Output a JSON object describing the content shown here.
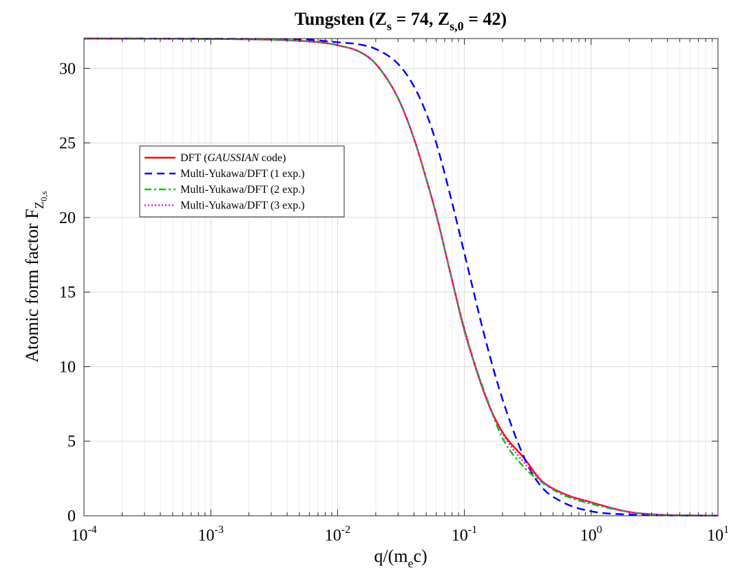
{
  "chart_data": {
    "type": "line",
    "title": {
      "prefix": "Tungsten (Z",
      "sub1": "s",
      "mid": " = 74, Z",
      "sub2": "s,0",
      "suffix": " = 42)"
    },
    "xlabel": {
      "prefix": "q/(m",
      "sub": "e",
      "suffix": "c)"
    },
    "ylabel": {
      "prefix": "Atomic form factor F",
      "sub": "Z",
      "subsub": "0,s"
    },
    "x_scale": "log",
    "xlim": [
      0.0001,
      10
    ],
    "ylim": [
      0,
      32
    ],
    "x_ticks": [
      {
        "base": "10",
        "exp": "-4"
      },
      {
        "base": "10",
        "exp": "-3"
      },
      {
        "base": "10",
        "exp": "-2"
      },
      {
        "base": "10",
        "exp": "-1"
      },
      {
        "base": "10",
        "exp": "0"
      },
      {
        "base": "10",
        "exp": "1"
      }
    ],
    "y_ticks": [
      "0",
      "5",
      "10",
      "15",
      "20",
      "25",
      "30"
    ],
    "grid": true,
    "legend_position": "upper-left",
    "series": [
      {
        "name": "DFT (GAUSSIAN code)",
        "name_parts": [
          "DFT (",
          "GAUSSIAN",
          " code)"
        ],
        "color": "#ff0000",
        "style": "solid",
        "points": [
          [
            0.0001,
            32.0
          ],
          [
            0.002,
            31.95
          ],
          [
            0.005,
            31.85
          ],
          [
            0.008,
            31.7
          ],
          [
            0.01,
            31.55
          ],
          [
            0.015,
            31.1
          ],
          [
            0.02,
            30.3
          ],
          [
            0.03,
            28.0
          ],
          [
            0.04,
            25.3
          ],
          [
            0.05,
            22.6
          ],
          [
            0.06,
            20.2
          ],
          [
            0.08,
            15.8
          ],
          [
            0.1,
            12.5
          ],
          [
            0.15,
            7.8
          ],
          [
            0.2,
            5.6
          ],
          [
            0.3,
            3.8
          ],
          [
            0.4,
            2.4
          ],
          [
            0.6,
            1.5
          ],
          [
            1.0,
            0.9
          ],
          [
            2.0,
            0.25
          ],
          [
            3.0,
            0.1
          ],
          [
            5.0,
            0.03
          ],
          [
            10.0,
            0.01
          ]
        ]
      },
      {
        "name": "Multi-Yukawa/DFT (1 exp.)",
        "color": "#0000ff",
        "style": "dashed",
        "points": [
          [
            0.0001,
            32.0
          ],
          [
            0.005,
            31.95
          ],
          [
            0.01,
            31.75
          ],
          [
            0.015,
            31.6
          ],
          [
            0.02,
            31.3
          ],
          [
            0.03,
            30.3
          ],
          [
            0.04,
            28.8
          ],
          [
            0.05,
            27.0
          ],
          [
            0.06,
            25.0
          ],
          [
            0.08,
            21.0
          ],
          [
            0.1,
            17.6
          ],
          [
            0.15,
            11.5
          ],
          [
            0.2,
            7.8
          ],
          [
            0.3,
            3.8
          ],
          [
            0.4,
            2.0
          ],
          [
            0.6,
            0.9
          ],
          [
            1.0,
            0.3
          ],
          [
            2.0,
            0.08
          ],
          [
            5.0,
            0.02
          ],
          [
            10.0,
            0.01
          ]
        ]
      },
      {
        "name": "Multi-Yukawa/DFT (2 exp.)",
        "color": "#00cc00",
        "style": "dashdot",
        "points": [
          [
            0.0001,
            32.0
          ],
          [
            0.002,
            31.95
          ],
          [
            0.005,
            31.85
          ],
          [
            0.008,
            31.7
          ],
          [
            0.01,
            31.55
          ],
          [
            0.015,
            31.1
          ],
          [
            0.02,
            30.3
          ],
          [
            0.03,
            28.0
          ],
          [
            0.04,
            25.3
          ],
          [
            0.05,
            22.6
          ],
          [
            0.06,
            20.2
          ],
          [
            0.08,
            15.8
          ],
          [
            0.1,
            12.4
          ],
          [
            0.15,
            7.9
          ],
          [
            0.2,
            5.2
          ],
          [
            0.3,
            3.2
          ],
          [
            0.4,
            2.3
          ],
          [
            0.6,
            1.4
          ],
          [
            1.0,
            0.8
          ],
          [
            2.0,
            0.25
          ],
          [
            3.0,
            0.1
          ],
          [
            5.0,
            0.03
          ],
          [
            10.0,
            0.01
          ]
        ]
      },
      {
        "name": "Multi-Yukawa/DFT (3 exp.)",
        "color": "#ff00ff",
        "style": "dotted",
        "points": [
          [
            0.0001,
            32.0
          ],
          [
            0.002,
            31.95
          ],
          [
            0.005,
            31.85
          ],
          [
            0.008,
            31.7
          ],
          [
            0.01,
            31.55
          ],
          [
            0.015,
            31.1
          ],
          [
            0.02,
            30.3
          ],
          [
            0.03,
            28.0
          ],
          [
            0.04,
            25.3
          ],
          [
            0.05,
            22.6
          ],
          [
            0.06,
            20.2
          ],
          [
            0.08,
            15.8
          ],
          [
            0.1,
            12.4
          ],
          [
            0.15,
            7.8
          ],
          [
            0.2,
            5.5
          ],
          [
            0.3,
            3.5
          ],
          [
            0.4,
            2.4
          ],
          [
            0.6,
            1.5
          ],
          [
            1.0,
            0.9
          ],
          [
            2.0,
            0.25
          ],
          [
            3.0,
            0.1
          ],
          [
            5.0,
            0.03
          ],
          [
            10.0,
            0.01
          ]
        ]
      }
    ]
  }
}
